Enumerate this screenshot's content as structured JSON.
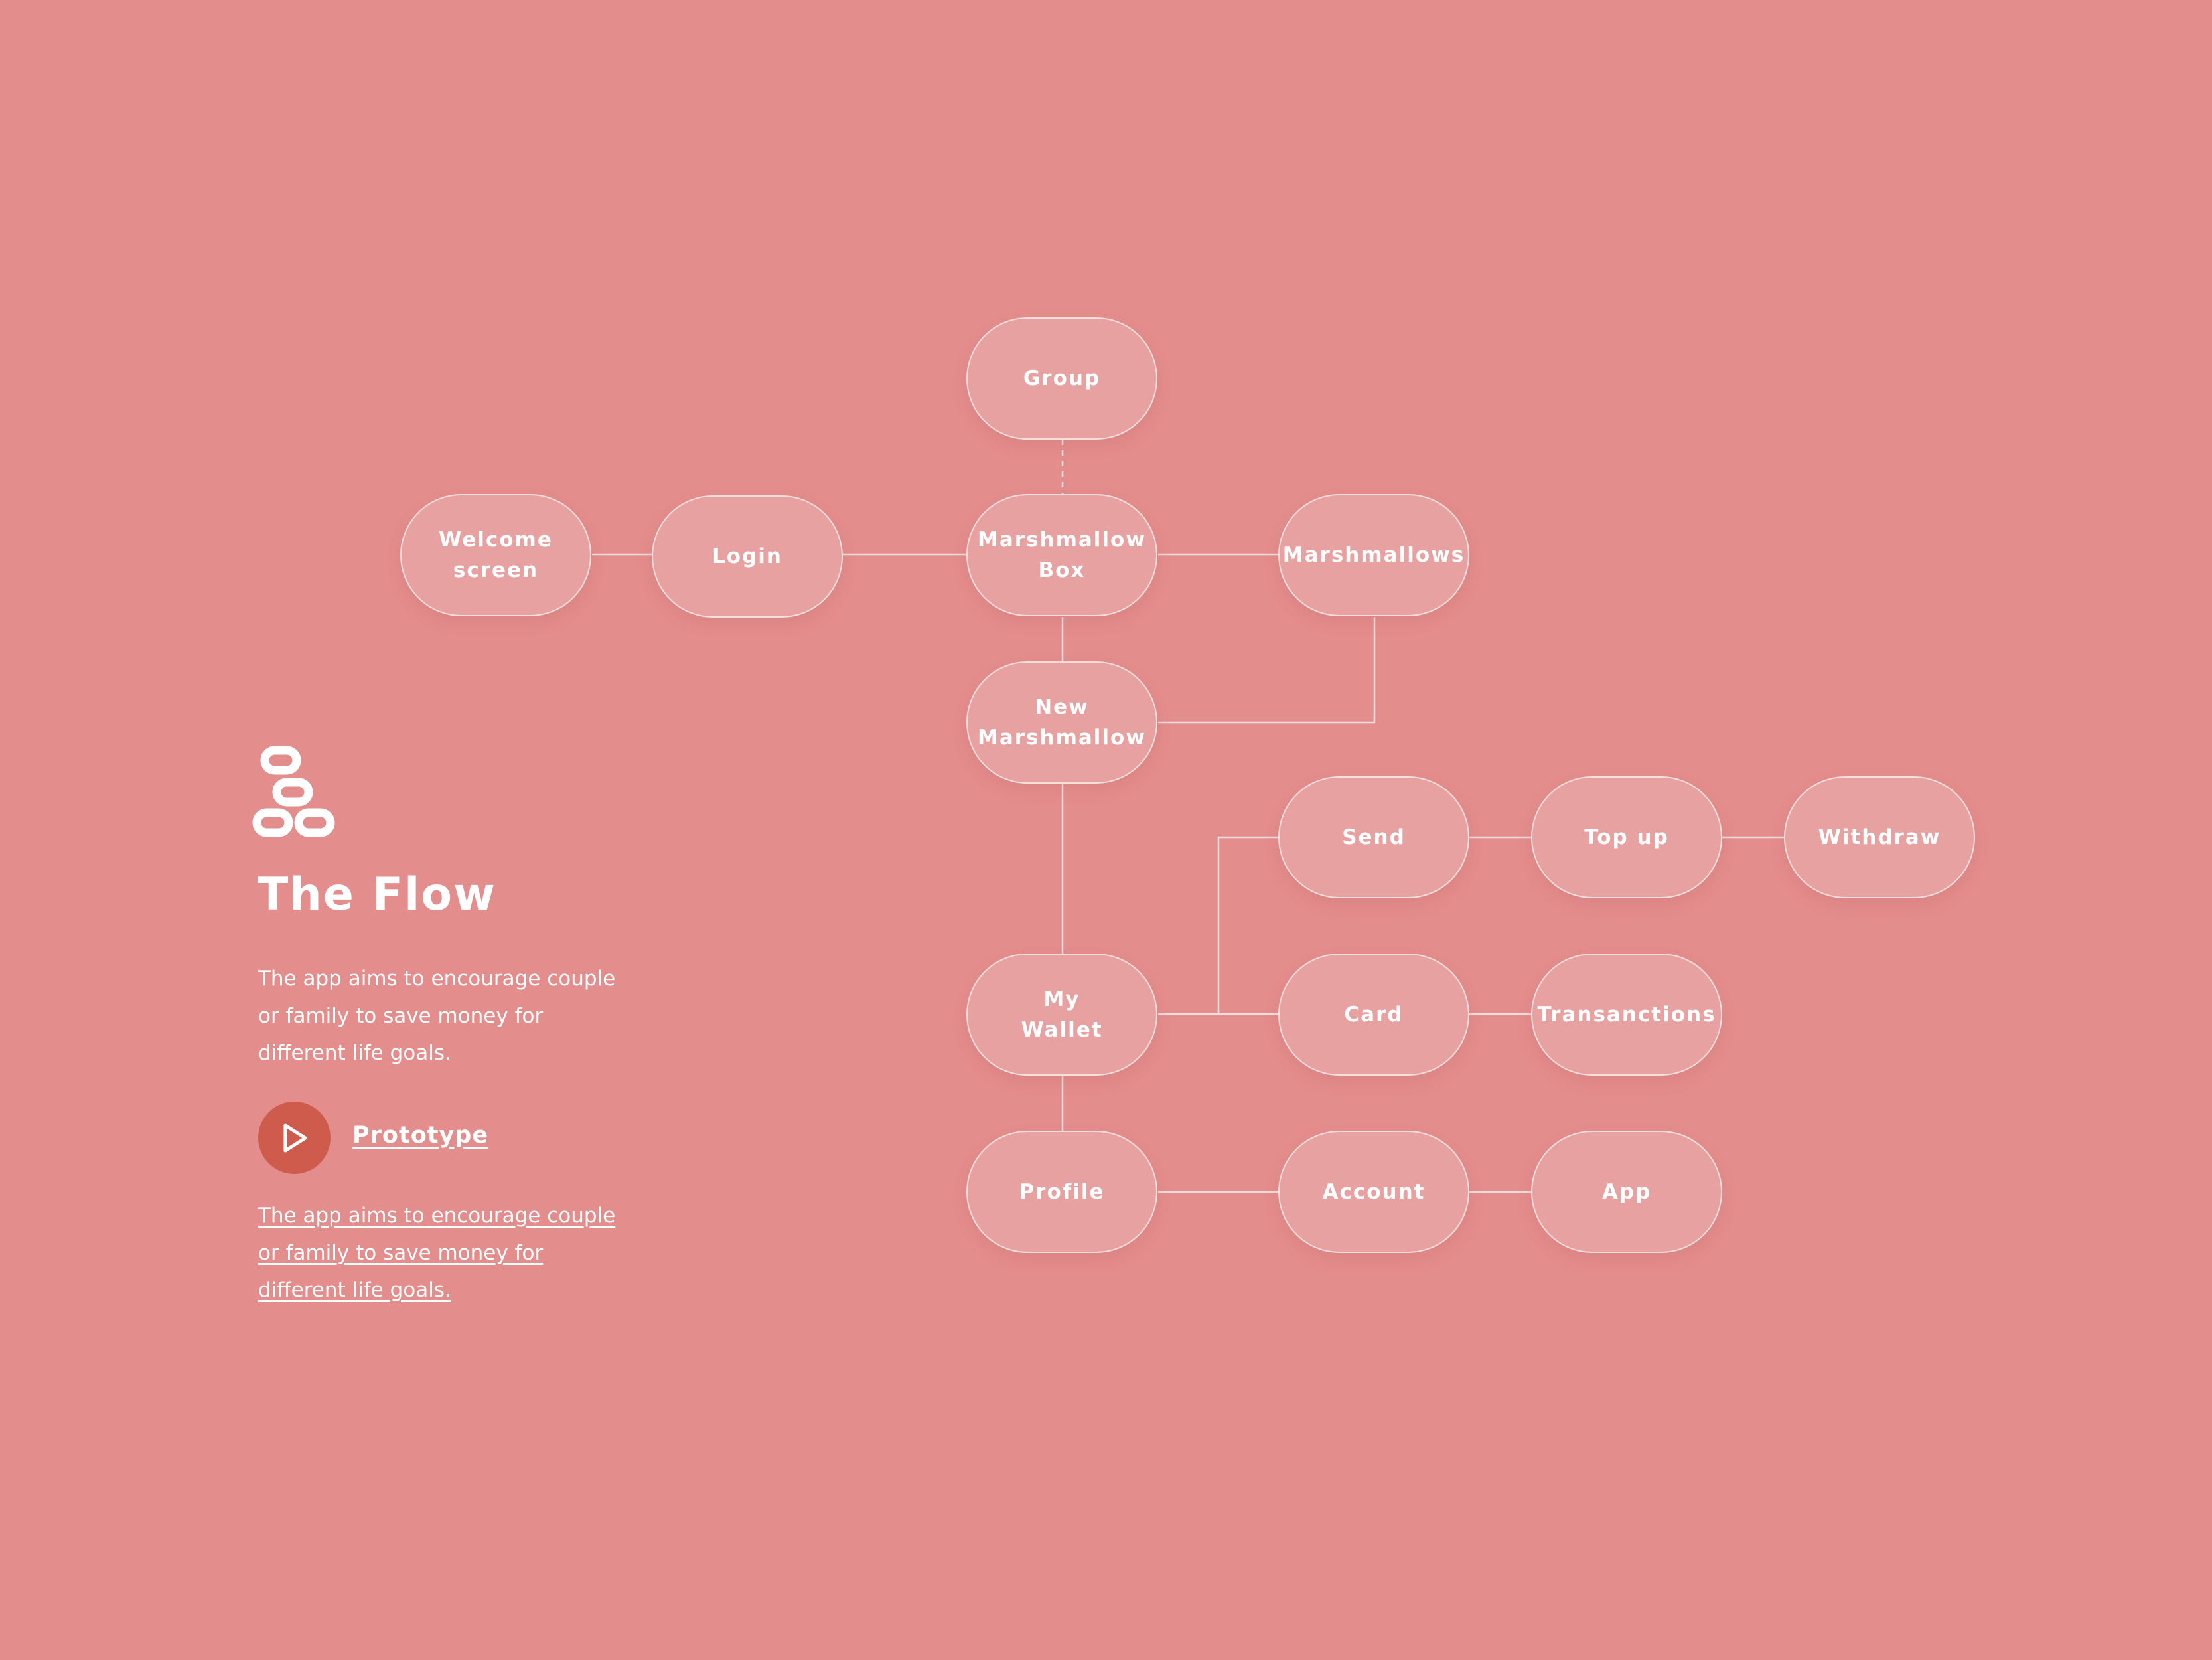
{
  "colors": {
    "background": "#e38d8c",
    "node_fill": "#e8a1a1",
    "node_border": "#f7dede",
    "connector": "#f6dcdc",
    "text": "#ffffff",
    "play_button": "#cf5b4c"
  },
  "sidebar": {
    "logo_icon": "stacked-rings-icon",
    "title": "The Flow",
    "description": "The app aims to encourage couple or family to save money for different life goals.",
    "prototype_icon": "play-icon",
    "prototype_label": "Prototype",
    "link_text": "The app aims to encourage couple or family to save money for different life goals."
  },
  "diagram": {
    "nodes": {
      "group": "Group",
      "welcome": "Welcome\nscreen",
      "login": "Login",
      "marshmallow_box": "Marshmallow\nBox",
      "marshmallows": "Marshmallows",
      "new_marshmallow": "New\nMarshmallow",
      "my_wallet": "My\nWallet",
      "send": "Send",
      "top_up": "Top up",
      "withdraw": "Withdraw",
      "card": "Card",
      "transactions": "Transanctions",
      "profile": "Profile",
      "account": "Account",
      "app": "App"
    },
    "edges": [
      {
        "from": "welcome",
        "to": "login",
        "style": "solid"
      },
      {
        "from": "login",
        "to": "marshmallow_box",
        "style": "solid"
      },
      {
        "from": "group",
        "to": "marshmallow_box",
        "style": "dashed"
      },
      {
        "from": "marshmallow_box",
        "to": "marshmallows",
        "style": "solid"
      },
      {
        "from": "marshmallow_box",
        "to": "new_marshmallow",
        "style": "solid"
      },
      {
        "from": "marshmallows",
        "to": "new_marshmallow",
        "style": "solid"
      },
      {
        "from": "new_marshmallow",
        "to": "my_wallet",
        "style": "solid"
      },
      {
        "from": "my_wallet",
        "to": "send",
        "style": "solid"
      },
      {
        "from": "my_wallet",
        "to": "card",
        "style": "solid"
      },
      {
        "from": "send",
        "to": "top_up",
        "style": "solid"
      },
      {
        "from": "top_up",
        "to": "withdraw",
        "style": "solid"
      },
      {
        "from": "card",
        "to": "transactions",
        "style": "solid"
      },
      {
        "from": "my_wallet",
        "to": "profile",
        "style": "solid"
      },
      {
        "from": "profile",
        "to": "account",
        "style": "solid"
      },
      {
        "from": "account",
        "to": "app",
        "style": "solid"
      }
    ]
  }
}
